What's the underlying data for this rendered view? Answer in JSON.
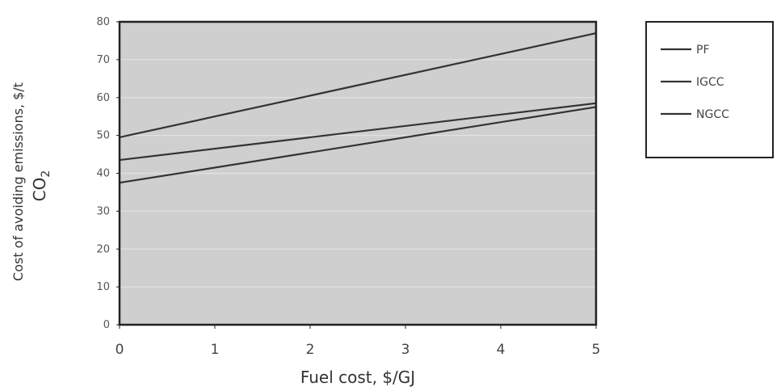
{
  "chart_data": {
    "type": "line",
    "title": "",
    "xlabel": "Fuel cost, $/GJ",
    "ylabel_line1": "Cost of avoiding emissions, $/t",
    "ylabel_line2": "CO",
    "ylabel_line2_subscript": "2",
    "x_ticks": [
      "0",
      "1",
      "2",
      "3",
      "4",
      "5"
    ],
    "y_ticks": [
      "0",
      "10",
      "20",
      "30",
      "40",
      "50",
      "60",
      "70",
      "80"
    ],
    "xlim": [
      0,
      5
    ],
    "ylim": [
      0,
      80
    ],
    "grid": true,
    "legend_position": "right",
    "colors": {
      "plot_bg": "#cfcfcf",
      "grid": "#e2e2e2",
      "line": "#333333",
      "frame": "#222222"
    },
    "series": [
      {
        "name": "PF",
        "x": [
          0,
          5
        ],
        "y": [
          49.5,
          77
        ]
      },
      {
        "name": "IGCC",
        "x": [
          0,
          5
        ],
        "y": [
          43.5,
          58.5
        ]
      },
      {
        "name": "NGCC",
        "x": [
          0,
          5
        ],
        "y": [
          37.5,
          57.5
        ]
      }
    ]
  }
}
